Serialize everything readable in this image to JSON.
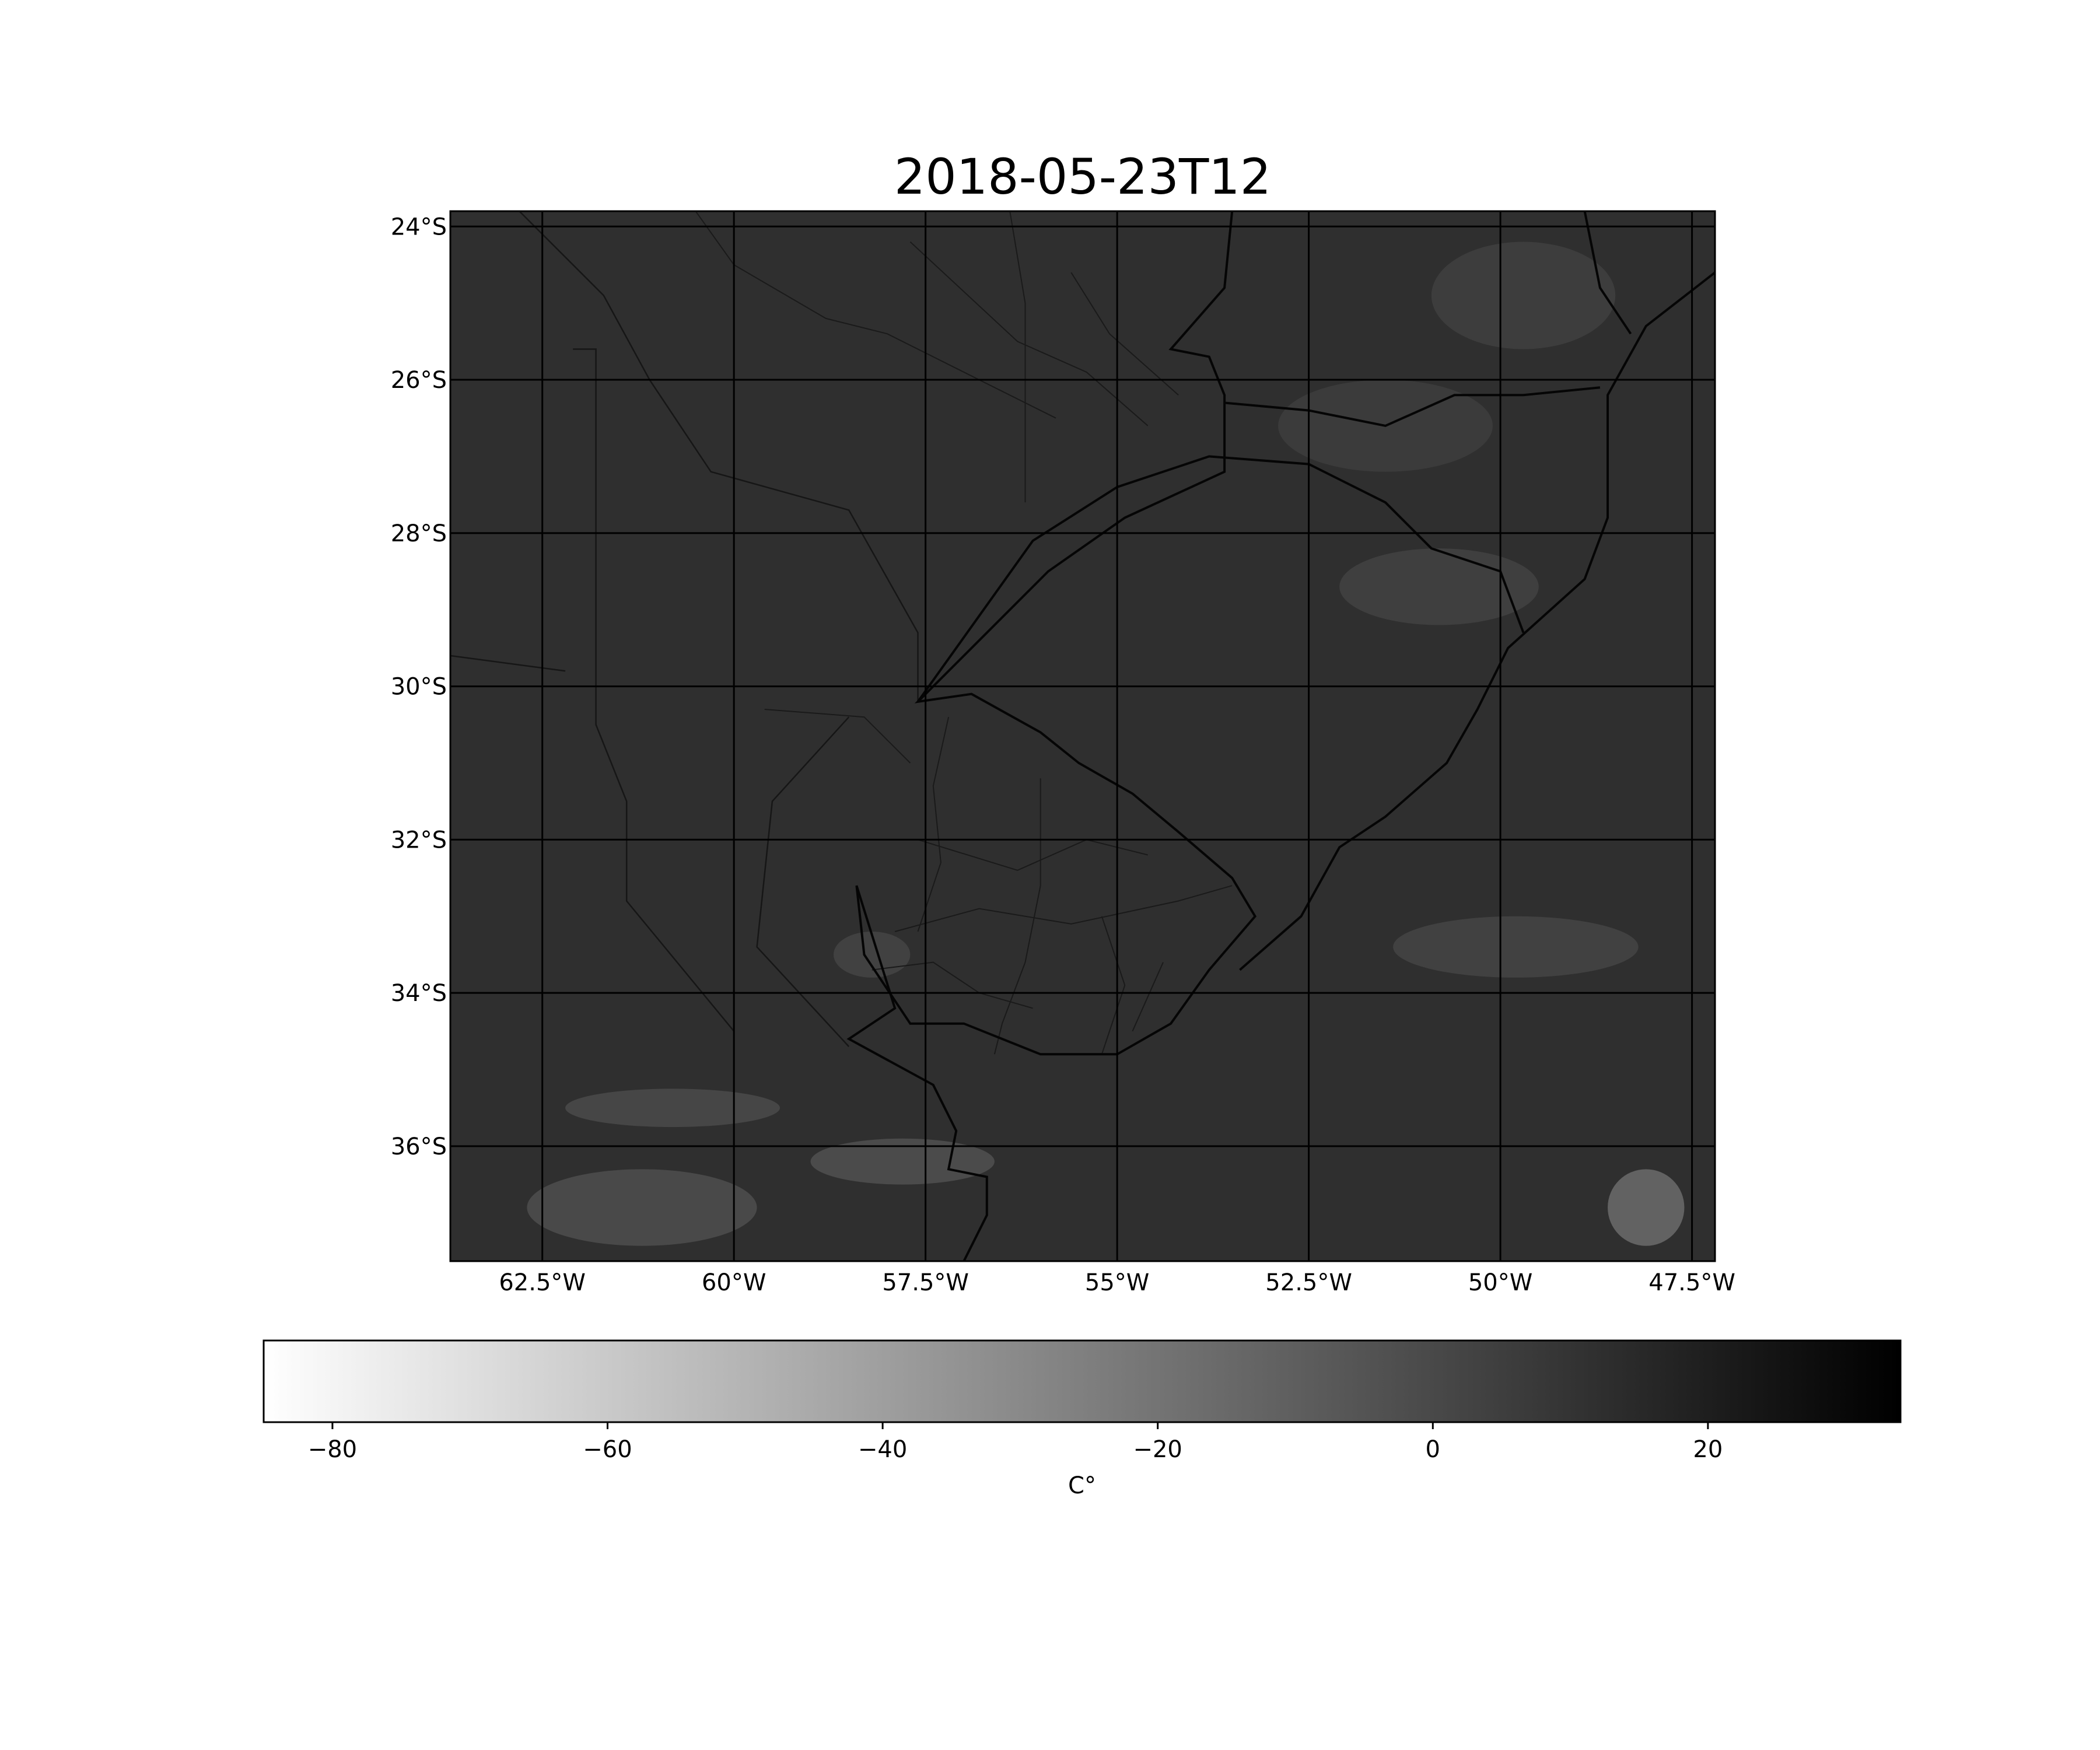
{
  "title": "2018-05-23T12",
  "map": {
    "lon_range": [
      -63.7,
      -47.2
    ],
    "lat_range": [
      -37.5,
      -23.8
    ],
    "gridlines": true,
    "lon_ticks": [
      {
        "value": -62.5,
        "label": "62.5°W"
      },
      {
        "value": -60,
        "label": "60°W"
      },
      {
        "value": -57.5,
        "label": "57.5°W"
      },
      {
        "value": -55,
        "label": "55°W"
      },
      {
        "value": -52.5,
        "label": "52.5°W"
      },
      {
        "value": -50,
        "label": "50°W"
      },
      {
        "value": -47.5,
        "label": "47.5°W"
      }
    ],
    "lat_ticks": [
      {
        "value": -24,
        "label": "24°S"
      },
      {
        "value": -26,
        "label": "26°S"
      },
      {
        "value": -28,
        "label": "28°S"
      },
      {
        "value": -30,
        "label": "30°S"
      },
      {
        "value": -32,
        "label": "32°S"
      },
      {
        "value": -34,
        "label": "34°S"
      },
      {
        "value": -36,
        "label": "36°S"
      }
    ],
    "coastline": [
      [
        -53.5,
        -23.8
      ],
      [
        -53.6,
        -24.8
      ],
      [
        -54.3,
        -25.6
      ],
      [
        -53.8,
        -25.7
      ],
      [
        -53.6,
        -26.2
      ],
      [
        -53.6,
        -27.2
      ],
      [
        -54.9,
        -27.8
      ],
      [
        -55.9,
        -28.5
      ],
      [
        -56.9,
        -29.5
      ],
      [
        -57.6,
        -30.2
      ],
      [
        -56.9,
        -30.1
      ],
      [
        -56.0,
        -30.6
      ],
      [
        -55.5,
        -31.0
      ],
      [
        -54.8,
        -31.4
      ],
      [
        -54.2,
        -31.9
      ],
      [
        -53.5,
        -32.5
      ],
      [
        -53.2,
        -33.0
      ],
      [
        -53.8,
        -33.7
      ],
      [
        -54.3,
        -34.4
      ],
      [
        -55.0,
        -34.8
      ],
      [
        -56.0,
        -34.8
      ],
      [
        -57.0,
        -34.4
      ],
      [
        -57.7,
        -34.4
      ],
      [
        -58.3,
        -33.5
      ],
      [
        -58.4,
        -32.6
      ],
      [
        -57.9,
        -34.2
      ],
      [
        -58.5,
        -34.6
      ],
      [
        -57.4,
        -35.2
      ],
      [
        -57.1,
        -35.8
      ],
      [
        -57.2,
        -36.3
      ],
      [
        -56.7,
        -36.4
      ],
      [
        -56.7,
        -36.9
      ],
      [
        -57.0,
        -37.5
      ]
    ],
    "shoreline_east": [
      [
        -47.2,
        -24.6
      ],
      [
        -48.1,
        -25.3
      ],
      [
        -48.6,
        -26.2
      ],
      [
        -48.6,
        -27.0
      ],
      [
        -48.6,
        -27.8
      ],
      [
        -48.9,
        -28.6
      ],
      [
        -49.9,
        -29.5
      ],
      [
        -50.3,
        -30.3
      ],
      [
        -50.7,
        -31.0
      ],
      [
        -51.5,
        -31.7
      ],
      [
        -52.1,
        -32.1
      ],
      [
        -52.6,
        -33.0
      ],
      [
        -53.4,
        -33.7
      ]
    ],
    "state_borders": [
      [
        [
          -53.6,
          -26.3
        ],
        [
          -52.5,
          -26.4
        ],
        [
          -51.5,
          -26.6
        ],
        [
          -50.6,
          -26.2
        ],
        [
          -49.7,
          -26.2
        ],
        [
          -48.7,
          -26.1
        ]
      ],
      [
        [
          -57.6,
          -30.2
        ],
        [
          -56.1,
          -28.1
        ],
        [
          -55.0,
          -27.4
        ],
        [
          -53.8,
          -27.0
        ],
        [
          -52.5,
          -27.1
        ],
        [
          -51.5,
          -27.6
        ],
        [
          -50.9,
          -28.2
        ],
        [
          -50.0,
          -28.5
        ],
        [
          -49.7,
          -29.3
        ]
      ],
      [
        [
          -48.9,
          -23.8
        ],
        [
          -48.7,
          -24.8
        ],
        [
          -48.3,
          -25.4
        ]
      ]
    ],
    "country_borders": [
      [
        [
          -62.8,
          -23.8
        ],
        [
          -61.7,
          -24.9
        ],
        [
          -61.1,
          -26.0
        ],
        [
          -60.3,
          -27.2
        ],
        [
          -58.5,
          -27.7
        ],
        [
          -57.6,
          -29.3
        ],
        [
          -57.6,
          -30.2
        ]
      ],
      [
        [
          -62.1,
          -25.6
        ],
        [
          -61.8,
          -25.6
        ],
        [
          -61.8,
          -30.5
        ],
        [
          -61.4,
          -31.5
        ],
        [
          -61.4,
          -32.8
        ],
        [
          -60.0,
          -34.5
        ],
        [
          -60.0,
          -35.6
        ]
      ],
      [
        [
          -63.7,
          -29.6
        ],
        [
          -62.2,
          -29.8
        ]
      ],
      [
        [
          -58.5,
          -30.4
        ],
        [
          -59.5,
          -31.5
        ],
        [
          -59.7,
          -33.4
        ],
        [
          -58.5,
          -34.7
        ]
      ]
    ],
    "province_lines": [
      [
        [
          -60.5,
          -23.8
        ],
        [
          -60.0,
          -24.5
        ],
        [
          -58.8,
          -25.2
        ],
        [
          -58.0,
          -25.4
        ],
        [
          -56.8,
          -26.0
        ],
        [
          -55.8,
          -26.5
        ]
      ],
      [
        [
          -57.7,
          -24.2
        ],
        [
          -56.3,
          -25.5
        ],
        [
          -55.4,
          -25.9
        ],
        [
          -54.6,
          -26.6
        ]
      ],
      [
        [
          -56.4,
          -23.8
        ],
        [
          -56.2,
          -25.0
        ],
        [
          -56.2,
          -26.5
        ],
        [
          -56.2,
          -27.6
        ]
      ],
      [
        [
          -55.6,
          -24.6
        ],
        [
          -55.1,
          -25.4
        ],
        [
          -54.2,
          -26.2
        ]
      ],
      [
        [
          -57.6,
          -32.0
        ],
        [
          -56.3,
          -32.4
        ],
        [
          -55.4,
          -32.0
        ],
        [
          -54.6,
          -32.2
        ]
      ],
      [
        [
          -57.9,
          -33.2
        ],
        [
          -56.8,
          -32.9
        ],
        [
          -55.6,
          -33.1
        ],
        [
          -54.2,
          -32.8
        ],
        [
          -53.5,
          -32.6
        ]
      ],
      [
        [
          -56.0,
          -31.2
        ],
        [
          -56.0,
          -32.6
        ],
        [
          -56.2,
          -33.6
        ],
        [
          -56.5,
          -34.4
        ],
        [
          -56.6,
          -34.8
        ]
      ],
      [
        [
          -55.2,
          -33.0
        ],
        [
          -54.9,
          -33.9
        ],
        [
          -55.2,
          -34.8
        ]
      ],
      [
        [
          -57.2,
          -30.4
        ],
        [
          -57.4,
          -31.3
        ],
        [
          -57.3,
          -32.3
        ],
        [
          -57.6,
          -33.2
        ]
      ],
      [
        [
          -54.4,
          -33.6
        ],
        [
          -54.8,
          -34.5
        ]
      ],
      [
        [
          -59.6,
          -30.3
        ],
        [
          -58.3,
          -30.4
        ],
        [
          -57.7,
          -31.0
        ]
      ],
      [
        [
          -58.2,
          -33.7
        ],
        [
          -57.4,
          -33.6
        ],
        [
          -56.8,
          -34.0
        ],
        [
          -56.1,
          -34.2
        ]
      ]
    ],
    "bright_patches": [
      {
        "lon": -60.8,
        "lat": -35.5,
        "rw": 1.4,
        "rh": 0.25,
        "level": -8
      },
      {
        "lon": -57.8,
        "lat": -36.2,
        "rw": 1.2,
        "rh": 0.3,
        "level": -12
      },
      {
        "lon": -61.2,
        "lat": -36.8,
        "rw": 1.5,
        "rh": 0.5,
        "level": -10
      },
      {
        "lon": -48.1,
        "lat": -36.8,
        "rw": 0.5,
        "rh": 0.5,
        "level": -32
      },
      {
        "lon": -49.8,
        "lat": -33.4,
        "rw": 1.6,
        "rh": 0.4,
        "level": -4
      },
      {
        "lon": -50.8,
        "lat": -28.7,
        "rw": 1.3,
        "rh": 0.5,
        "level": -2
      },
      {
        "lon": -49.7,
        "lat": -24.9,
        "rw": 1.2,
        "rh": 0.7,
        "level": 0
      },
      {
        "lon": -51.5,
        "lat": -26.6,
        "rw": 1.4,
        "rh": 0.6,
        "level": 2
      },
      {
        "lon": -58.2,
        "lat": -33.5,
        "rw": 0.5,
        "rh": 0.3,
        "level": -4
      }
    ]
  },
  "colorbar": {
    "label": "C°",
    "range": [
      -85,
      34
    ],
    "ticks": [
      {
        "value": -80,
        "label": "−80"
      },
      {
        "value": -60,
        "label": "−60"
      },
      {
        "value": -40,
        "label": "−40"
      },
      {
        "value": -20,
        "label": "−20"
      },
      {
        "value": 0,
        "label": "0"
      },
      {
        "value": 20,
        "label": "20"
      }
    ],
    "colors": {
      "low": "#ffffff",
      "high": "#000000"
    }
  },
  "chart_data": {
    "type": "heatmap",
    "title": "2018-05-23T12",
    "xlabel": "",
    "ylabel": "",
    "x_range": [
      -63.7,
      -47.2
    ],
    "y_range": [
      -37.5,
      -23.8
    ],
    "x_ticks": [
      "62.5°W",
      "60°W",
      "57.5°W",
      "55°W",
      "52.5°W",
      "50°W",
      "47.5°W"
    ],
    "y_ticks": [
      "24°S",
      "26°S",
      "28°S",
      "30°S",
      "32°S",
      "34°S",
      "36°S"
    ],
    "colorbar": {
      "label": "C°",
      "min": -85,
      "max": 34,
      "ticks": [
        -80,
        -60,
        -40,
        -20,
        0,
        20
      ],
      "colormap": "Greys"
    },
    "grid": true
  }
}
